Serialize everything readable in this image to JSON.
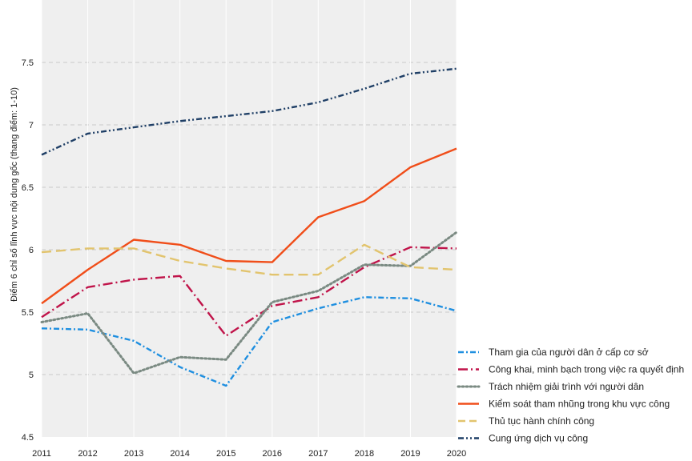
{
  "chart_data": {
    "type": "line",
    "title": "",
    "xlabel": "",
    "ylabel": "Điểm 6 chỉ số lĩnh vực nội dung gốc (thang điểm: 1-10)",
    "x": [
      2011,
      2012,
      2013,
      2014,
      2015,
      2016,
      2017,
      2018,
      2019,
      2020
    ],
    "xlim": [
      2011,
      2020
    ],
    "ylim": [
      4.5,
      8.0
    ],
    "yticks": [
      4.5,
      5,
      5.5,
      6,
      6.5,
      7,
      7.5
    ],
    "ytick_labels": [
      "4.5",
      "5",
      "5.5",
      "6",
      "6.5",
      "7",
      "7.5"
    ],
    "xtick_labels": [
      "2011",
      "2012",
      "2013",
      "2014",
      "2015",
      "2016",
      "2017",
      "2018",
      "2019",
      "2020"
    ],
    "grid": true,
    "legend_position": "bottom-right",
    "series": [
      {
        "name": "Tham gia của người dân ở cấp cơ sở",
        "color": "#1f8fe0",
        "dash": "dashdot",
        "values": [
          5.37,
          5.36,
          5.27,
          5.06,
          4.91,
          5.42,
          5.53,
          5.62,
          5.61,
          5.51
        ]
      },
      {
        "name": "Công khai, minh bạch trong việc ra quyết định",
        "color": "#c0144a",
        "dash": "longdashdot",
        "values": [
          5.46,
          5.7,
          5.76,
          5.79,
          5.31,
          5.55,
          5.62,
          5.86,
          6.02,
          6.01
        ]
      },
      {
        "name": "Trách nhiệm giải trình với người dân",
        "color": "#7a8a82",
        "dash": "dotted",
        "values": [
          5.42,
          5.49,
          5.01,
          5.14,
          5.12,
          5.58,
          5.67,
          5.88,
          5.87,
          6.14
        ]
      },
      {
        "name": "Kiểm soát tham nhũng trong khu vực công",
        "color": "#f04e1a",
        "dash": "solid",
        "values": [
          5.57,
          5.84,
          6.08,
          6.04,
          5.91,
          5.9,
          6.26,
          6.39,
          6.66,
          6.81
        ]
      },
      {
        "name": "Thủ tục hành chính công",
        "color": "#e2c46e",
        "dash": "dashed",
        "values": [
          5.98,
          6.01,
          6.01,
          5.91,
          5.85,
          5.8,
          5.8,
          6.04,
          5.86,
          5.84
        ]
      },
      {
        "name": "Cung ứng dịch vụ công",
        "color": "#1f3f66",
        "dash": "dashdotdot",
        "values": [
          6.76,
          6.93,
          6.98,
          7.03,
          7.07,
          7.11,
          7.18,
          7.29,
          7.41,
          7.45
        ]
      }
    ]
  }
}
